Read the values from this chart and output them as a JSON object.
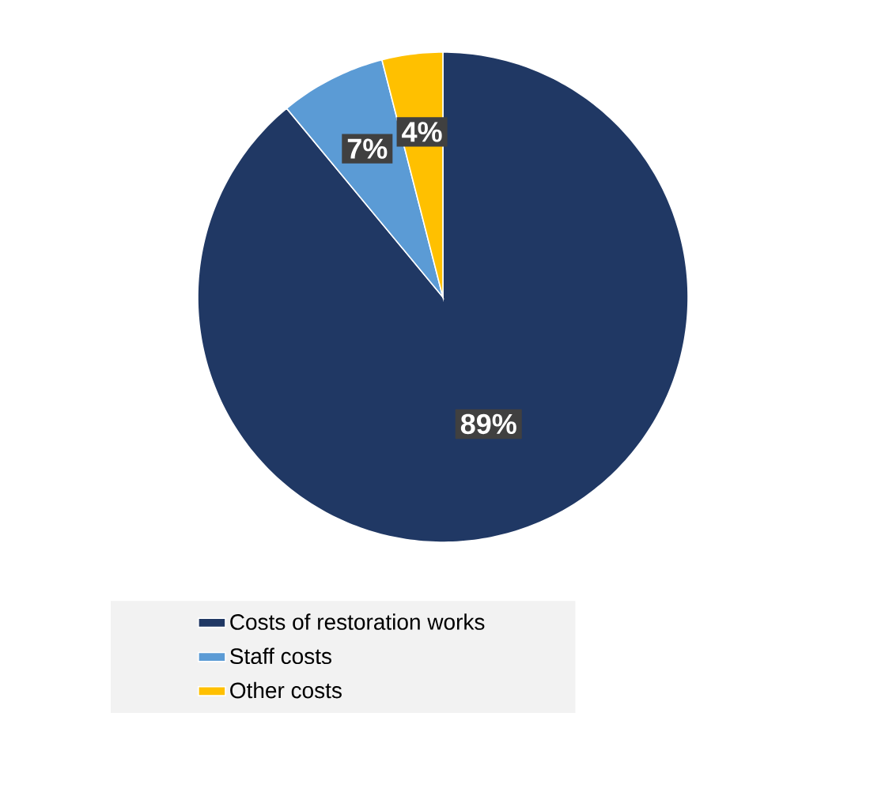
{
  "chart_data": {
    "type": "pie",
    "categories": [
      "Costs of restoration works",
      "Staff costs",
      "Other costs"
    ],
    "values": [
      89,
      7,
      4
    ],
    "value_labels": [
      "89%",
      "7%",
      "4%"
    ],
    "colors": [
      "#203864",
      "#5b9bd5",
      "#ffc000"
    ],
    "legend": "bottom"
  }
}
